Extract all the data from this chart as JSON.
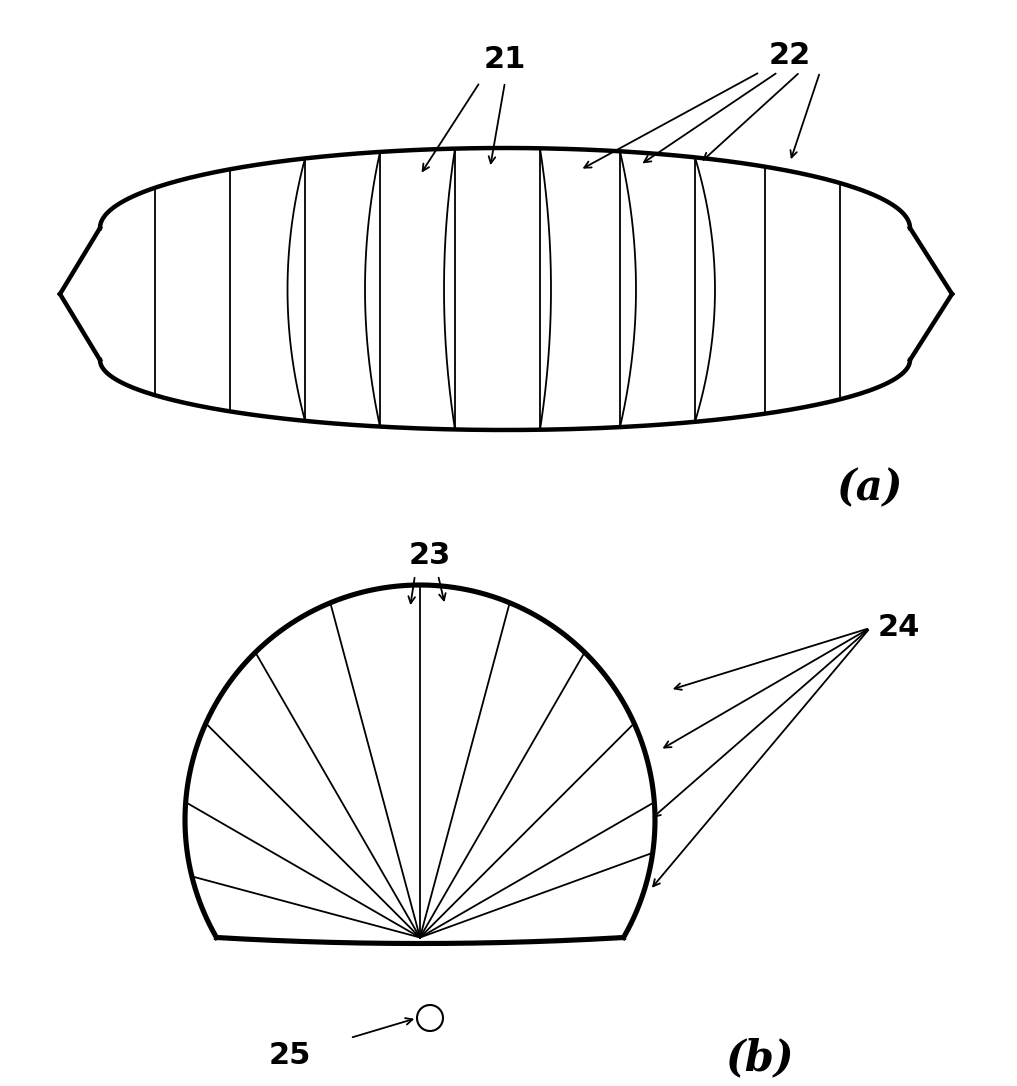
{
  "fig_width": 10.17,
  "fig_height": 10.86,
  "bg_color": "#ffffff",
  "label_21": "21",
  "label_22": "22",
  "label_23": "23",
  "label_24": "24",
  "label_25": "25",
  "label_a": "(a)",
  "label_b": "(b)",
  "line_color": "#000000",
  "thick_lw": 3.2,
  "thin_lw": 1.3
}
